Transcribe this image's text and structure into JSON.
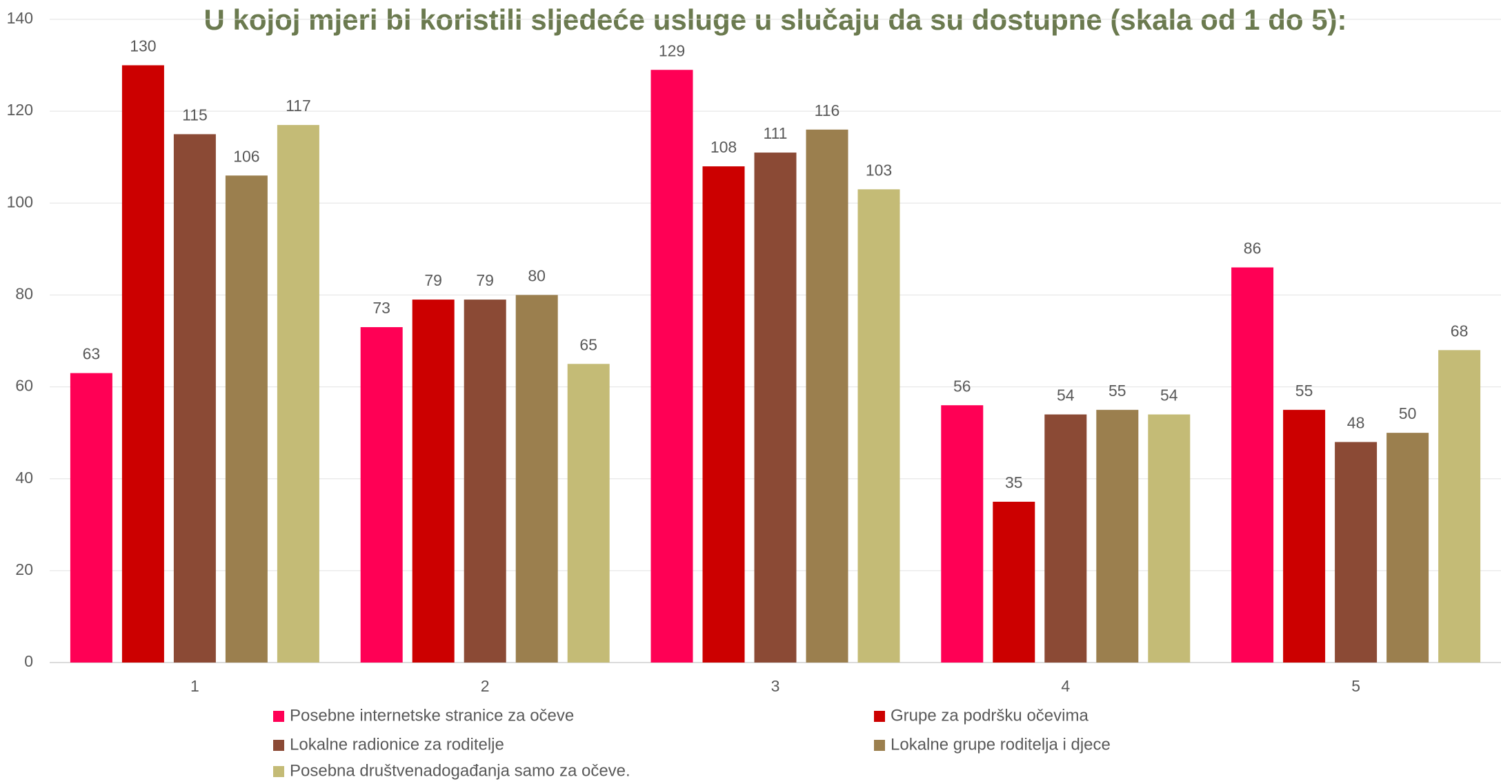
{
  "chart_data": {
    "type": "bar",
    "title": "U kojoj mjeri bi koristili sljedeće usluge u slučaju da su dostupne (skala od 1 do 5):",
    "categories": [
      "1",
      "2",
      "3",
      "4",
      "5"
    ],
    "series": [
      {
        "name": "Posebne internetske stranice za očeve",
        "color": "#ff0055",
        "values": [
          63,
          73,
          129,
          56,
          86
        ]
      },
      {
        "name": "Grupe za podršku očevima",
        "color": "#cc0000",
        "values": [
          130,
          79,
          108,
          35,
          55
        ]
      },
      {
        "name": "Lokalne radionice za roditelje",
        "color": "#8b4a35",
        "values": [
          115,
          79,
          111,
          54,
          48
        ]
      },
      {
        "name": "Lokalne grupe roditelja i djece",
        "color": "#9b7f4e",
        "values": [
          106,
          80,
          116,
          55,
          50
        ]
      },
      {
        "name": "Posebna društvenadogađanja samo za očeve.",
        "color": "#c4bb76",
        "values": [
          117,
          65,
          103,
          54,
          68
        ]
      }
    ],
    "ylim": [
      0,
      140
    ],
    "yticks": [
      0,
      20,
      40,
      60,
      80,
      100,
      120,
      140
    ],
    "grid": true,
    "legend": "bottom"
  }
}
